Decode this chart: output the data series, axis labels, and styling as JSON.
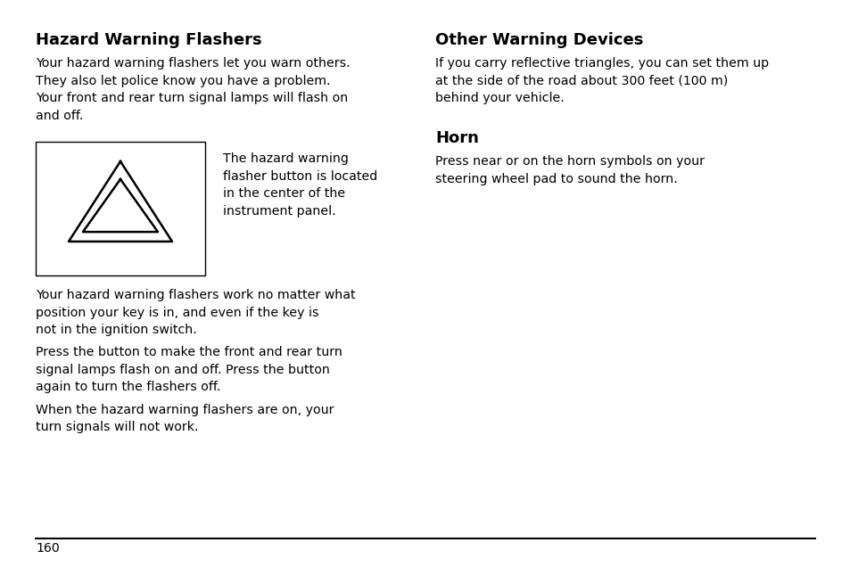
{
  "background_color": "#ffffff",
  "page_number": "160",
  "left_column": {
    "title": "Hazard Warning Flashers",
    "para1": "Your hazard warning flashers let you warn others.\nThey also let police know you have a problem.\nYour front and rear turn signal lamps will flash on\nand off.",
    "image_caption": "The hazard warning\nflasher button is located\nin the center of the\ninstrument panel.",
    "para2": "Your hazard warning flashers work no matter what\nposition your key is in, and even if the key is\nnot in the ignition switch.",
    "para3": "Press the button to make the front and rear turn\nsignal lamps flash on and off. Press the button\nagain to turn the flashers off.",
    "para4": "When the hazard warning flashers are on, your\nturn signals will not work."
  },
  "right_column": {
    "title1": "Other Warning Devices",
    "para1": "If you carry reflective triangles, you can set them up\nat the side of the road about 300 feet (100 m)\nbehind your vehicle.",
    "title2": "Horn",
    "para2": "Press near or on the horn symbols on your\nsteering wheel pad to sound the horn."
  },
  "title_fontsize": 13,
  "body_fontsize": 10.2,
  "text_color": "#000000",
  "line_color": "#000000"
}
